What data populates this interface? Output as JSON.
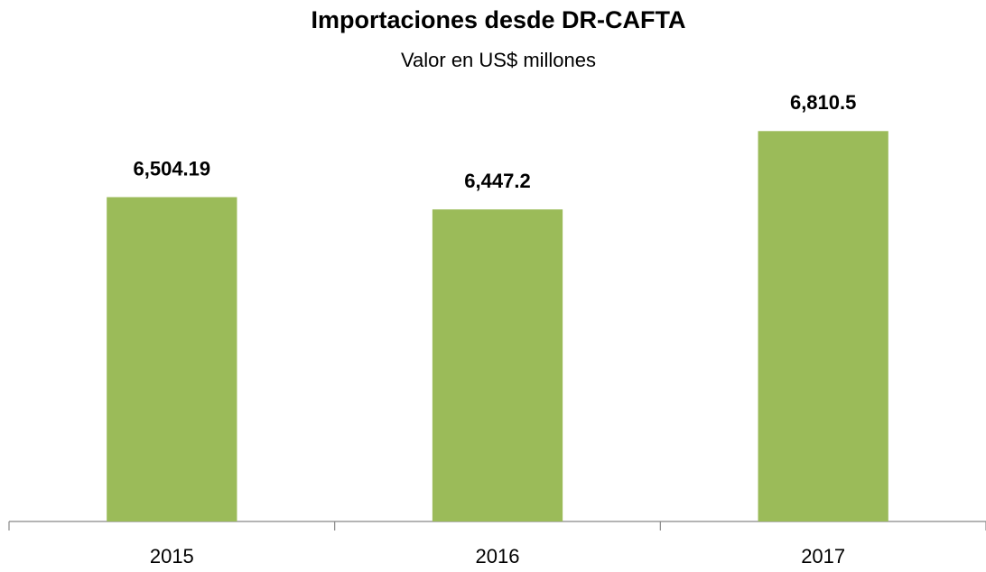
{
  "chart_data": {
    "type": "bar",
    "title": "Importaciones desde DR-CAFTA",
    "subtitle": "Valor en US$ millones",
    "categories": [
      "2015",
      "2016",
      "2017"
    ],
    "values": [
      6504.19,
      6447.2,
      6810.5
    ],
    "value_labels": [
      "6,504.19",
      "6,447.2",
      "6,810.5"
    ],
    "color": "#9bbb59",
    "ylim": [
      5000,
      7000
    ],
    "grid": false
  }
}
